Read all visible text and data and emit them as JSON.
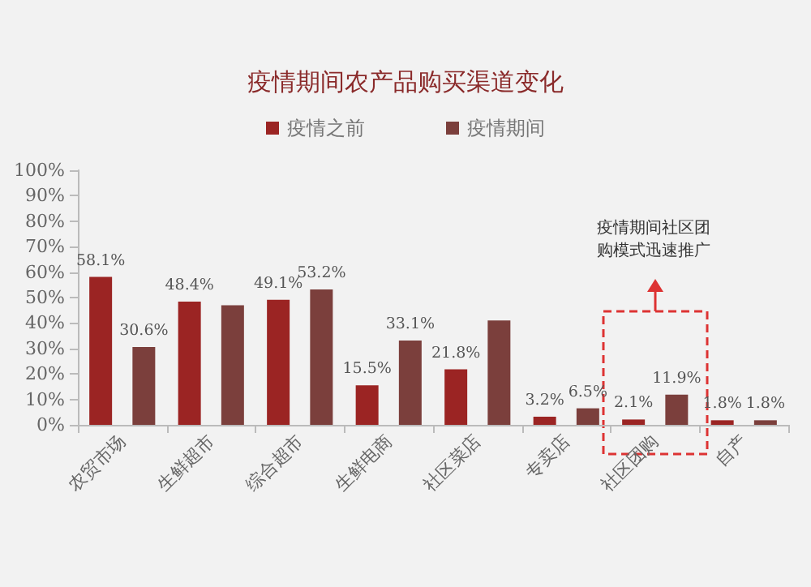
{
  "chart_data": {
    "type": "bar",
    "title": "疫情期间农产品购买渠道变化",
    "categories": [
      "农贸市场",
      "生鲜超市",
      "综合超市",
      "生鲜电商",
      "社区菜店",
      "专卖店",
      "社区团购",
      "自产"
    ],
    "series": [
      {
        "name": "疫情之前",
        "color": "#9b2423",
        "values": [
          58.1,
          48.4,
          49.1,
          15.5,
          21.8,
          3.2,
          2.1,
          1.8
        ],
        "value_labels": [
          "58.1%",
          "48.4%",
          "49.1%",
          "15.5%",
          "21.8%",
          "3.2%",
          "2.1%",
          "1.8%"
        ]
      },
      {
        "name": "疫情期间",
        "color": "#7b3f3c",
        "values": [
          30.6,
          47,
          53.2,
          33.1,
          41,
          6.5,
          11.9,
          1.8
        ],
        "value_labels": [
          "30.6%",
          null,
          "53.2%",
          "33.1%",
          null,
          "6.5%",
          "11.9%",
          "1.8%"
        ]
      }
    ],
    "ylim": [
      0,
      100
    ],
    "yticks": [
      {
        "value": 0,
        "label": "0%"
      },
      {
        "value": 10,
        "label": "10%"
      },
      {
        "value": 20,
        "label": "20%"
      },
      {
        "value": 30,
        "label": "30%"
      },
      {
        "value": 40,
        "label": "40%"
      },
      {
        "value": 50,
        "label": "50%"
      },
      {
        "value": 60,
        "label": "60%"
      },
      {
        "value": 70,
        "label": "70%"
      },
      {
        "value": 80,
        "label": "80%"
      },
      {
        "value": 90,
        "label": "90%"
      },
      {
        "value": 100,
        "label": "100%"
      }
    ],
    "annotations": [
      "疫情期间社区团购模式迅速推广"
    ],
    "grid": false,
    "legend": "top"
  }
}
